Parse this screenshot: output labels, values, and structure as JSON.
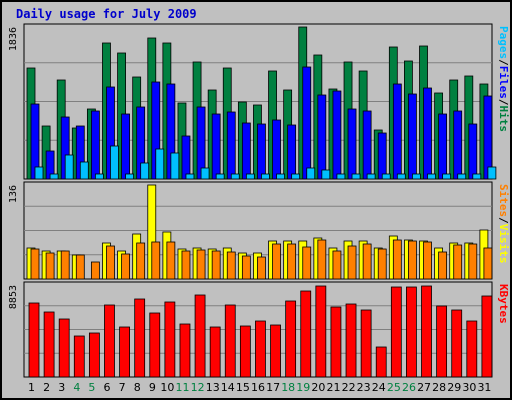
{
  "chart_data": {
    "type": "bar",
    "title": "Daily usage for July 2009",
    "days": [
      "1",
      "2",
      "3",
      "4",
      "5",
      "6",
      "7",
      "8",
      "9",
      "10",
      "11",
      "12",
      "13",
      "14",
      "15",
      "16",
      "17",
      "18",
      "19",
      "20",
      "21",
      "22",
      "23",
      "24",
      "25",
      "26",
      "27",
      "28",
      "29",
      "30",
      "31"
    ],
    "weekend_days": [
      "4",
      "5",
      "11",
      "12",
      "18",
      "19",
      "25",
      "26"
    ],
    "top_panel": {
      "ymax": 1836,
      "ymax_label": "1836",
      "right_label": [
        "Pages",
        "Files",
        "Hits"
      ],
      "series": [
        {
          "name": "Hits",
          "color": "#008040",
          "values": [
            1340,
            640,
            1200,
            620,
            850,
            1640,
            1520,
            1230,
            1700,
            1645,
            915,
            1410,
            1070,
            1345,
            930,
            890,
            1310,
            1070,
            1836,
            1500,
            1090,
            1410,
            1310,
            590,
            1600,
            1420,
            1610,
            1040,
            1200,
            1250,
            1150
          ]
        },
        {
          "name": "Files",
          "color": "#0000ff",
          "values": [
            900,
            340,
            750,
            640,
            820,
            1110,
            780,
            870,
            1170,
            1150,
            520,
            870,
            780,
            810,
            680,
            660,
            710,
            650,
            1350,
            1010,
            1060,
            850,
            820,
            560,
            1150,
            1030,
            1100,
            790,
            820,
            660,
            1000
          ]
        },
        {
          "name": "Pages",
          "color": "#00c0ff",
          "values": [
            150,
            60,
            290,
            200,
            60,
            400,
            60,
            190,
            360,
            310,
            60,
            130,
            60,
            60,
            60,
            60,
            60,
            60,
            130,
            110,
            60,
            60,
            60,
            60,
            60,
            60,
            60,
            60,
            60,
            60,
            140
          ]
        }
      ]
    },
    "mid_panel": {
      "ymax": 136,
      "ymax_label": "136",
      "right_label": [
        "Sites",
        "Visits"
      ],
      "series": [
        {
          "name": "Visits",
          "color": "#ffff00",
          "values": [
            45,
            40,
            40,
            35,
            0,
            52,
            40,
            65,
            136,
            68,
            43,
            45,
            43,
            45,
            38,
            37,
            55,
            55,
            55,
            60,
            45,
            55,
            55,
            45,
            62,
            57,
            55,
            45,
            52,
            52,
            71
          ]
        },
        {
          "name": "Sites",
          "color": "#ff8000",
          "values": [
            44,
            38,
            40,
            34,
            25,
            48,
            36,
            52,
            53,
            53,
            40,
            42,
            40,
            39,
            33,
            32,
            50,
            50,
            47,
            56,
            40,
            48,
            50,
            43,
            56,
            55,
            53,
            39,
            49,
            50,
            45
          ]
        }
      ]
    },
    "bot_panel": {
      "ymax": 8853,
      "ymax_label": "8853",
      "right_label": [
        "KBytes"
      ],
      "series": [
        {
          "name": "KBytes",
          "color": "#ff0000",
          "values": [
            7100,
            6300,
            5600,
            3900,
            4200,
            6900,
            4800,
            7500,
            6200,
            7200,
            5100,
            7900,
            4800,
            6900,
            4900,
            5400,
            5000,
            7300,
            8300,
            8800,
            6700,
            7000,
            6400,
            2900,
            8700,
            8700,
            8800,
            6800,
            6400,
            5400,
            7800
          ]
        }
      ]
    }
  }
}
